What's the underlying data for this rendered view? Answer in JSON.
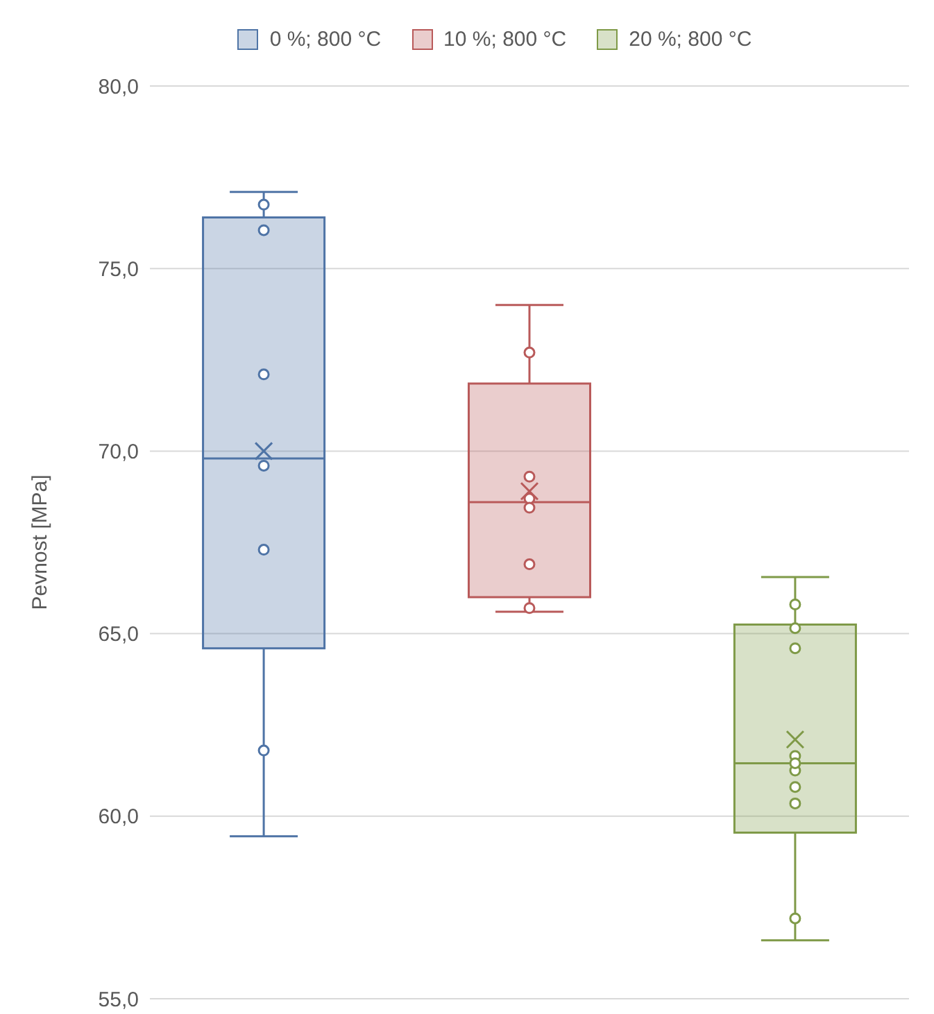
{
  "chart_data": {
    "type": "box",
    "ylabel": "Pevnost [MPa]",
    "categories": [
      null
    ],
    "ylim": [
      55,
      80
    ],
    "yticks": [
      {
        "value": 55,
        "label": "55,0"
      },
      {
        "value": 60,
        "label": "60,0"
      },
      {
        "value": 65,
        "label": "65,0"
      },
      {
        "value": 70,
        "label": "70,0"
      },
      {
        "value": 75,
        "label": "75,0"
      },
      {
        "value": 80,
        "label": "80,0"
      }
    ],
    "grid": "y",
    "legend": "top",
    "series": [
      {
        "name": "0 %; 800 °C",
        "color": "#4f74a6",
        "boxes": [
          {
            "low": 59.45,
            "q1": 64.6,
            "median": 69.8,
            "q3": 76.4,
            "high": 77.1,
            "mean": 70.0
          }
        ]
      },
      {
        "name": "10 %; 800 °C",
        "color": "#b95a5a",
        "boxes": [
          {
            "low": 65.6,
            "q1": 66.0,
            "median": 68.6,
            "q3": 71.85,
            "high": 74.0,
            "mean": 68.9
          }
        ]
      },
      {
        "name": "20 %; 800 °C",
        "color": "#7f9a48",
        "boxes": [
          {
            "low": 56.6,
            "q1": 59.55,
            "median": 61.45,
            "q3": 65.25,
            "high": 66.55,
            "mean": 62.1
          }
        ]
      },
      {
        "type": "scatter",
        "color": "#4f74a6",
        "marker": "circle",
        "x": [
          null,
          null,
          null,
          null,
          null,
          null
        ],
        "values": [
          76.75,
          76.05,
          72.1,
          69.6,
          67.3,
          61.8
        ]
      },
      {
        "type": "scatter",
        "color": "#b95a5a",
        "marker": "circle",
        "x": [
          null,
          null,
          null,
          null,
          null,
          null
        ],
        "values": [
          72.7,
          69.3,
          68.7,
          68.45,
          66.9,
          65.7
        ]
      },
      {
        "type": "scatter",
        "color": "#7f9a48",
        "marker": "circle",
        "x": [
          null,
          null,
          null,
          null,
          null,
          null,
          null,
          null,
          null
        ],
        "values": [
          65.8,
          65.15,
          64.6,
          61.65,
          61.25,
          60.8,
          60.35,
          57.2,
          61.45
        ]
      }
    ]
  }
}
